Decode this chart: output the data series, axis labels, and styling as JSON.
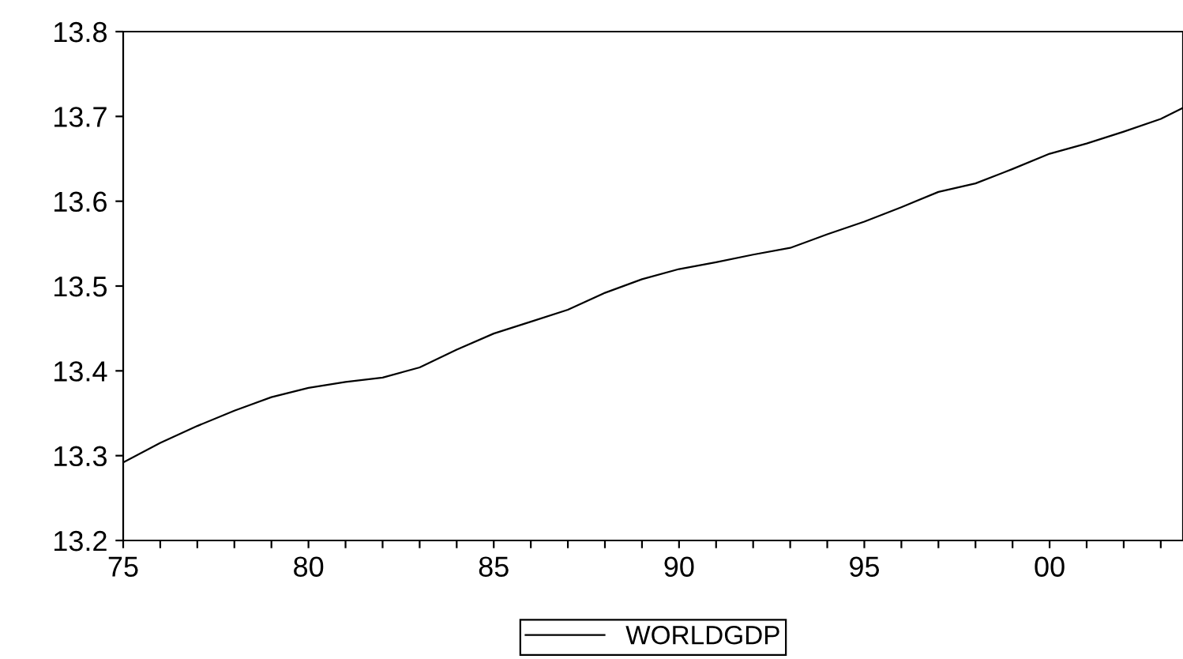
{
  "chart_data": {
    "type": "line",
    "x": [
      1975,
      1976,
      1977,
      1978,
      1979,
      1980,
      1981,
      1982,
      1983,
      1984,
      1985,
      1986,
      1987,
      1988,
      1989,
      1990,
      1991,
      1992,
      1993,
      1994,
      1995,
      1996,
      1997,
      1998,
      1999,
      2000,
      2001,
      2002,
      2003,
      2003.6
    ],
    "series": [
      {
        "name": "WORLDGDP",
        "color": "#000000",
        "values": [
          13.292,
          13.315,
          13.335,
          13.353,
          13.369,
          13.38,
          13.387,
          13.392,
          13.404,
          13.425,
          13.444,
          13.458,
          13.472,
          13.492,
          13.508,
          13.52,
          13.528,
          13.537,
          13.545,
          13.561,
          13.576,
          13.593,
          13.611,
          13.621,
          13.638,
          13.656,
          13.668,
          13.682,
          13.697,
          13.71
        ]
      }
    ],
    "xlim": [
      1975,
      2003.6
    ],
    "xticks": [
      {
        "value": 1975,
        "label": "75"
      },
      {
        "value": 1976,
        "label": null
      },
      {
        "value": 1977,
        "label": null
      },
      {
        "value": 1978,
        "label": null
      },
      {
        "value": 1979,
        "label": null
      },
      {
        "value": 1980,
        "label": "80"
      },
      {
        "value": 1981,
        "label": null
      },
      {
        "value": 1982,
        "label": null
      },
      {
        "value": 1983,
        "label": null
      },
      {
        "value": 1984,
        "label": null
      },
      {
        "value": 1985,
        "label": "85"
      },
      {
        "value": 1986,
        "label": null
      },
      {
        "value": 1987,
        "label": null
      },
      {
        "value": 1988,
        "label": null
      },
      {
        "value": 1989,
        "label": null
      },
      {
        "value": 1990,
        "label": "90"
      },
      {
        "value": 1991,
        "label": null
      },
      {
        "value": 1992,
        "label": null
      },
      {
        "value": 1993,
        "label": null
      },
      {
        "value": 1994,
        "label": null
      },
      {
        "value": 1995,
        "label": "95"
      },
      {
        "value": 1996,
        "label": null
      },
      {
        "value": 1997,
        "label": null
      },
      {
        "value": 1998,
        "label": null
      },
      {
        "value": 1999,
        "label": null
      },
      {
        "value": 2000,
        "label": "00"
      },
      {
        "value": 2001,
        "label": null
      },
      {
        "value": 2002,
        "label": null
      },
      {
        "value": 2003,
        "label": null
      }
    ],
    "ylim": [
      13.2,
      13.8
    ],
    "yticks": [
      13.2,
      13.3,
      13.4,
      13.5,
      13.6,
      13.7,
      13.8
    ],
    "grid": false,
    "legend": "bottom",
    "line_style": "solid",
    "marker": "none"
  }
}
